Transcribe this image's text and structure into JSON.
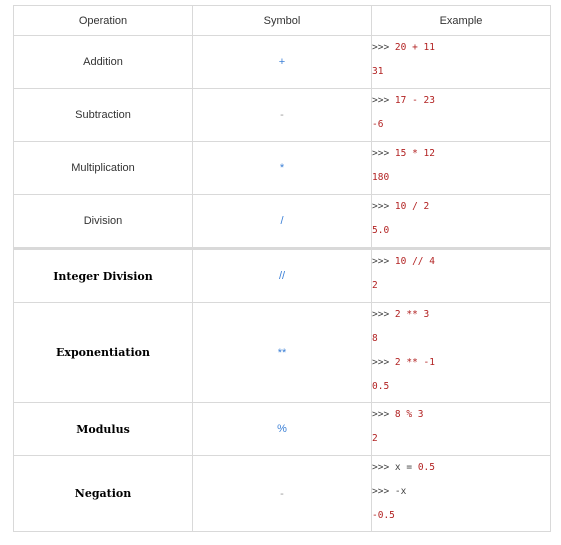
{
  "table": {
    "headers": {
      "operation": "Operation",
      "symbol": "Symbol",
      "example": "Example"
    },
    "rows": [
      {
        "operation": "Addition",
        "symbol": "+",
        "lines": [
          {
            "prompt": ">>>",
            "code": "20 + 11"
          },
          {
            "output": "31"
          }
        ]
      },
      {
        "operation": "Subtraction",
        "symbol": "-",
        "lines": [
          {
            "prompt": ">>>",
            "code": "17 - 23"
          },
          {
            "output": "-6"
          }
        ]
      },
      {
        "operation": "Multiplication",
        "symbol": "*",
        "lines": [
          {
            "prompt": ">>>",
            "code": "15 * 12"
          },
          {
            "output": "180"
          }
        ]
      },
      {
        "operation": "Division",
        "symbol": "/",
        "lines": [
          {
            "prompt": ">>>",
            "code": "10 / 2"
          },
          {
            "output": "5.0"
          }
        ]
      },
      {
        "operation": "Integer Division",
        "symbol": "//",
        "lines": [
          {
            "prompt": ">>>",
            "code": "10 // 4"
          },
          {
            "output": "2"
          }
        ]
      },
      {
        "operation": "Exponentiation",
        "symbol": "**",
        "lines": [
          {
            "prompt": ">>>",
            "code": "2 ** 3"
          },
          {
            "output": "8"
          },
          {
            "prompt": ">>>",
            "code": "2 ** -1"
          },
          {
            "output": "0.5"
          }
        ]
      },
      {
        "operation": "Modulus",
        "symbol": "%",
        "lines": [
          {
            "prompt": ">>>",
            "code": "8 % 3"
          },
          {
            "output": "2"
          }
        ]
      },
      {
        "operation": "Negation",
        "symbol": "-",
        "lines": [
          {
            "prompt": ">>>",
            "code": "x = 0.5",
            "plain_word": "x"
          },
          {
            "prompt": ">>>",
            "code": "-x",
            "plain_all": true
          },
          {
            "output": "-0.5"
          }
        ]
      }
    ]
  }
}
